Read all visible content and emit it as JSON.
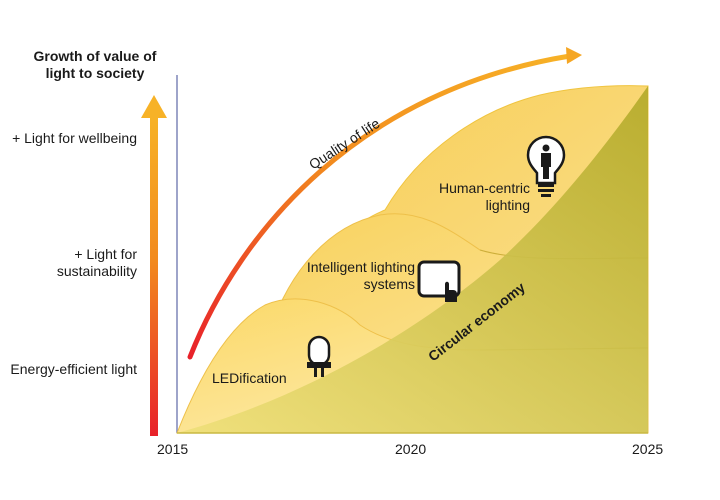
{
  "y_axis": {
    "title": "Growth of value of light to society",
    "levels": [
      {
        "id": "wellbeing",
        "label": "+ Light for wellbeing"
      },
      {
        "id": "sustainability",
        "label": "+ Light for sustainability"
      },
      {
        "id": "energy",
        "label": "Energy-efficient light"
      }
    ]
  },
  "x_axis": {
    "ticks": [
      "2015",
      "2020",
      "2025"
    ]
  },
  "layers": [
    {
      "id": "ledification",
      "label": "LEDification",
      "icon": "led-bulb-icon"
    },
    {
      "id": "intelligent",
      "label": "Intelligent lighting systems",
      "icon": "touchscreen-icon"
    },
    {
      "id": "human-centric",
      "label": "Human-centric lighting",
      "icon": "person-bulb-icon"
    }
  ],
  "arrow_label": "Quality of life",
  "wedge_label": "Circular economy",
  "colors": {
    "arrow_start": "#e8212a",
    "arrow_end": "#f5a623",
    "layer_light": "#fde9a6",
    "layer_mid": "#f7cf5a",
    "wedge_light": "#e6d24a",
    "wedge_dark": "#b7ad2c",
    "axis": "#7f86b8"
  }
}
